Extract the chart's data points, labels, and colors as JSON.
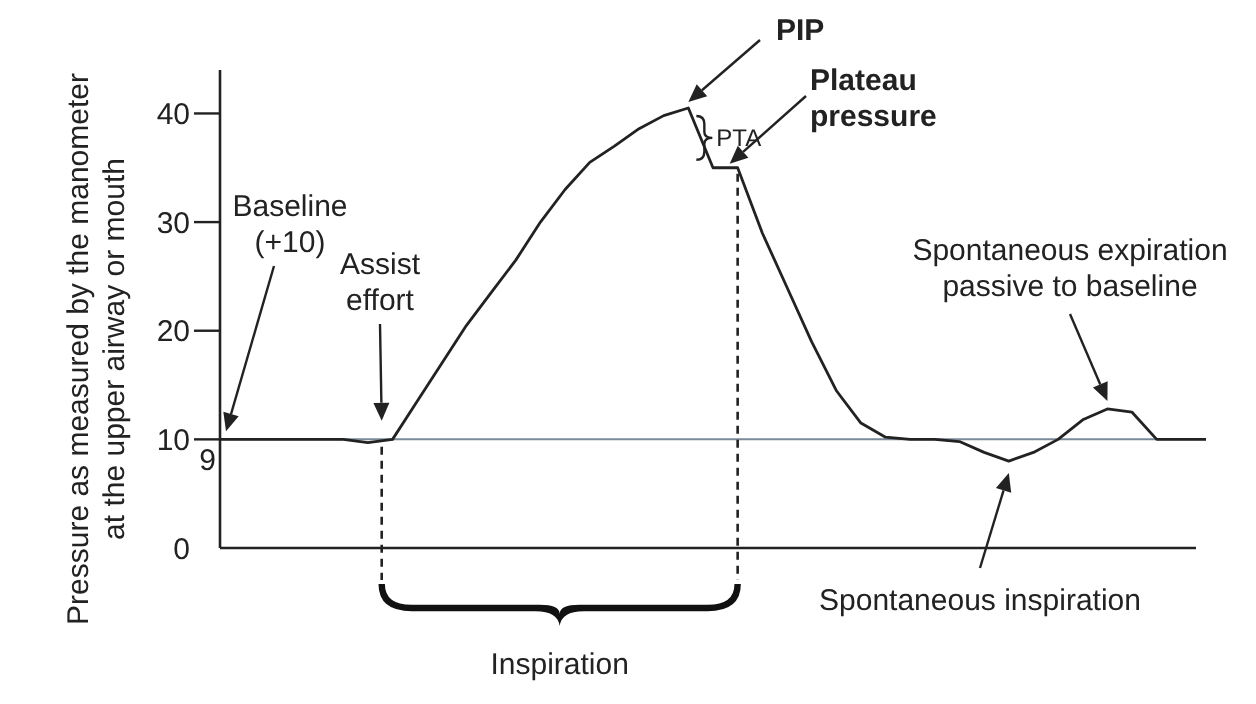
{
  "chart_data": {
    "type": "line",
    "ylabel": "Pressure as measured by the manometer\nat the upper airway or mouth",
    "categories": [
      null,
      null,
      null,
      null,
      null,
      null,
      null,
      null,
      null,
      null,
      null,
      null,
      null,
      null,
      null,
      null,
      null,
      null,
      null,
      null,
      null,
      null,
      null,
      null,
      null,
      null,
      null,
      null,
      null,
      null,
      null,
      null,
      null,
      null,
      null,
      null,
      null,
      null,
      null,
      null,
      null
    ],
    "series": [
      {
        "color": "#222222",
        "values": [
          10,
          10,
          10,
          10,
          10,
          10,
          9.7,
          10,
          13.5,
          17,
          20.5,
          23.5,
          26.5,
          30,
          33,
          35.5,
          37,
          38.6,
          39.8,
          40.5,
          35,
          35,
          29,
          24,
          19,
          14.5,
          11.5,
          10.2,
          10,
          10,
          9.8,
          8.8,
          8,
          8.8,
          10,
          11.8,
          12.8,
          12.5,
          10,
          10,
          10
        ]
      }
    ],
    "ylim": [
      0,
      44
    ],
    "yticks": [
      0,
      10,
      20,
      30,
      40
    ],
    "tick_labels": "y",
    "grid": false,
    "marker": "none",
    "line_style": "solid",
    "ref_lines": [
      {
        "axis": "y",
        "value": 10,
        "color": "#7a8a99",
        "line_style": "solid"
      }
    ],
    "annotations": [
      "Baseline\n(+10)",
      "Assist\neffort",
      "PIP",
      "Plateau\npressure",
      "PTA",
      "Spontaneous expiration\npassive to baseline",
      "Spontaneous inspiration",
      "Inspiration",
      "9"
    ]
  }
}
